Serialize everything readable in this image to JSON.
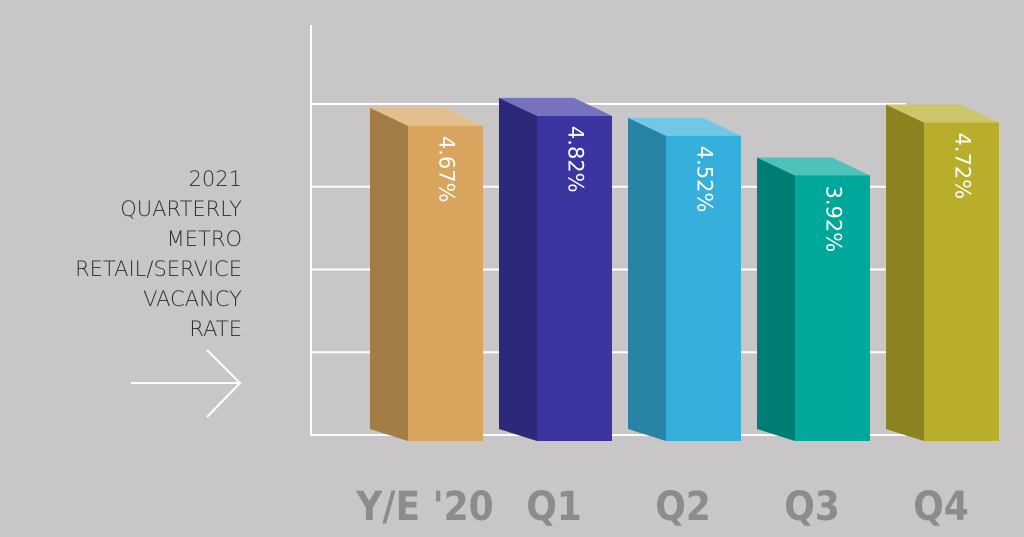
{
  "chart_data": {
    "type": "bar3d",
    "title": [
      "2021",
      "QUARTERLY",
      "METRO",
      "RETAIL/SERVICE",
      "VACANCY",
      "RATE"
    ],
    "categories": [
      "Y/E '20",
      "Q1",
      "Q2",
      "Q3",
      "Q4"
    ],
    "values": [
      4.67,
      4.82,
      4.52,
      3.92,
      4.72
    ],
    "value_labels": [
      "4.67%",
      "4.82%",
      "4.52%",
      "3.92%",
      "4.72%"
    ],
    "colors": [
      "#d8a45e",
      "#3b35a2",
      "#36afdc",
      "#00a89c",
      "#b9ae2b"
    ],
    "ylim": [
      0,
      5
    ],
    "yticks": [
      0,
      1.25,
      2.5,
      3.75,
      5
    ],
    "grid": true
  }
}
